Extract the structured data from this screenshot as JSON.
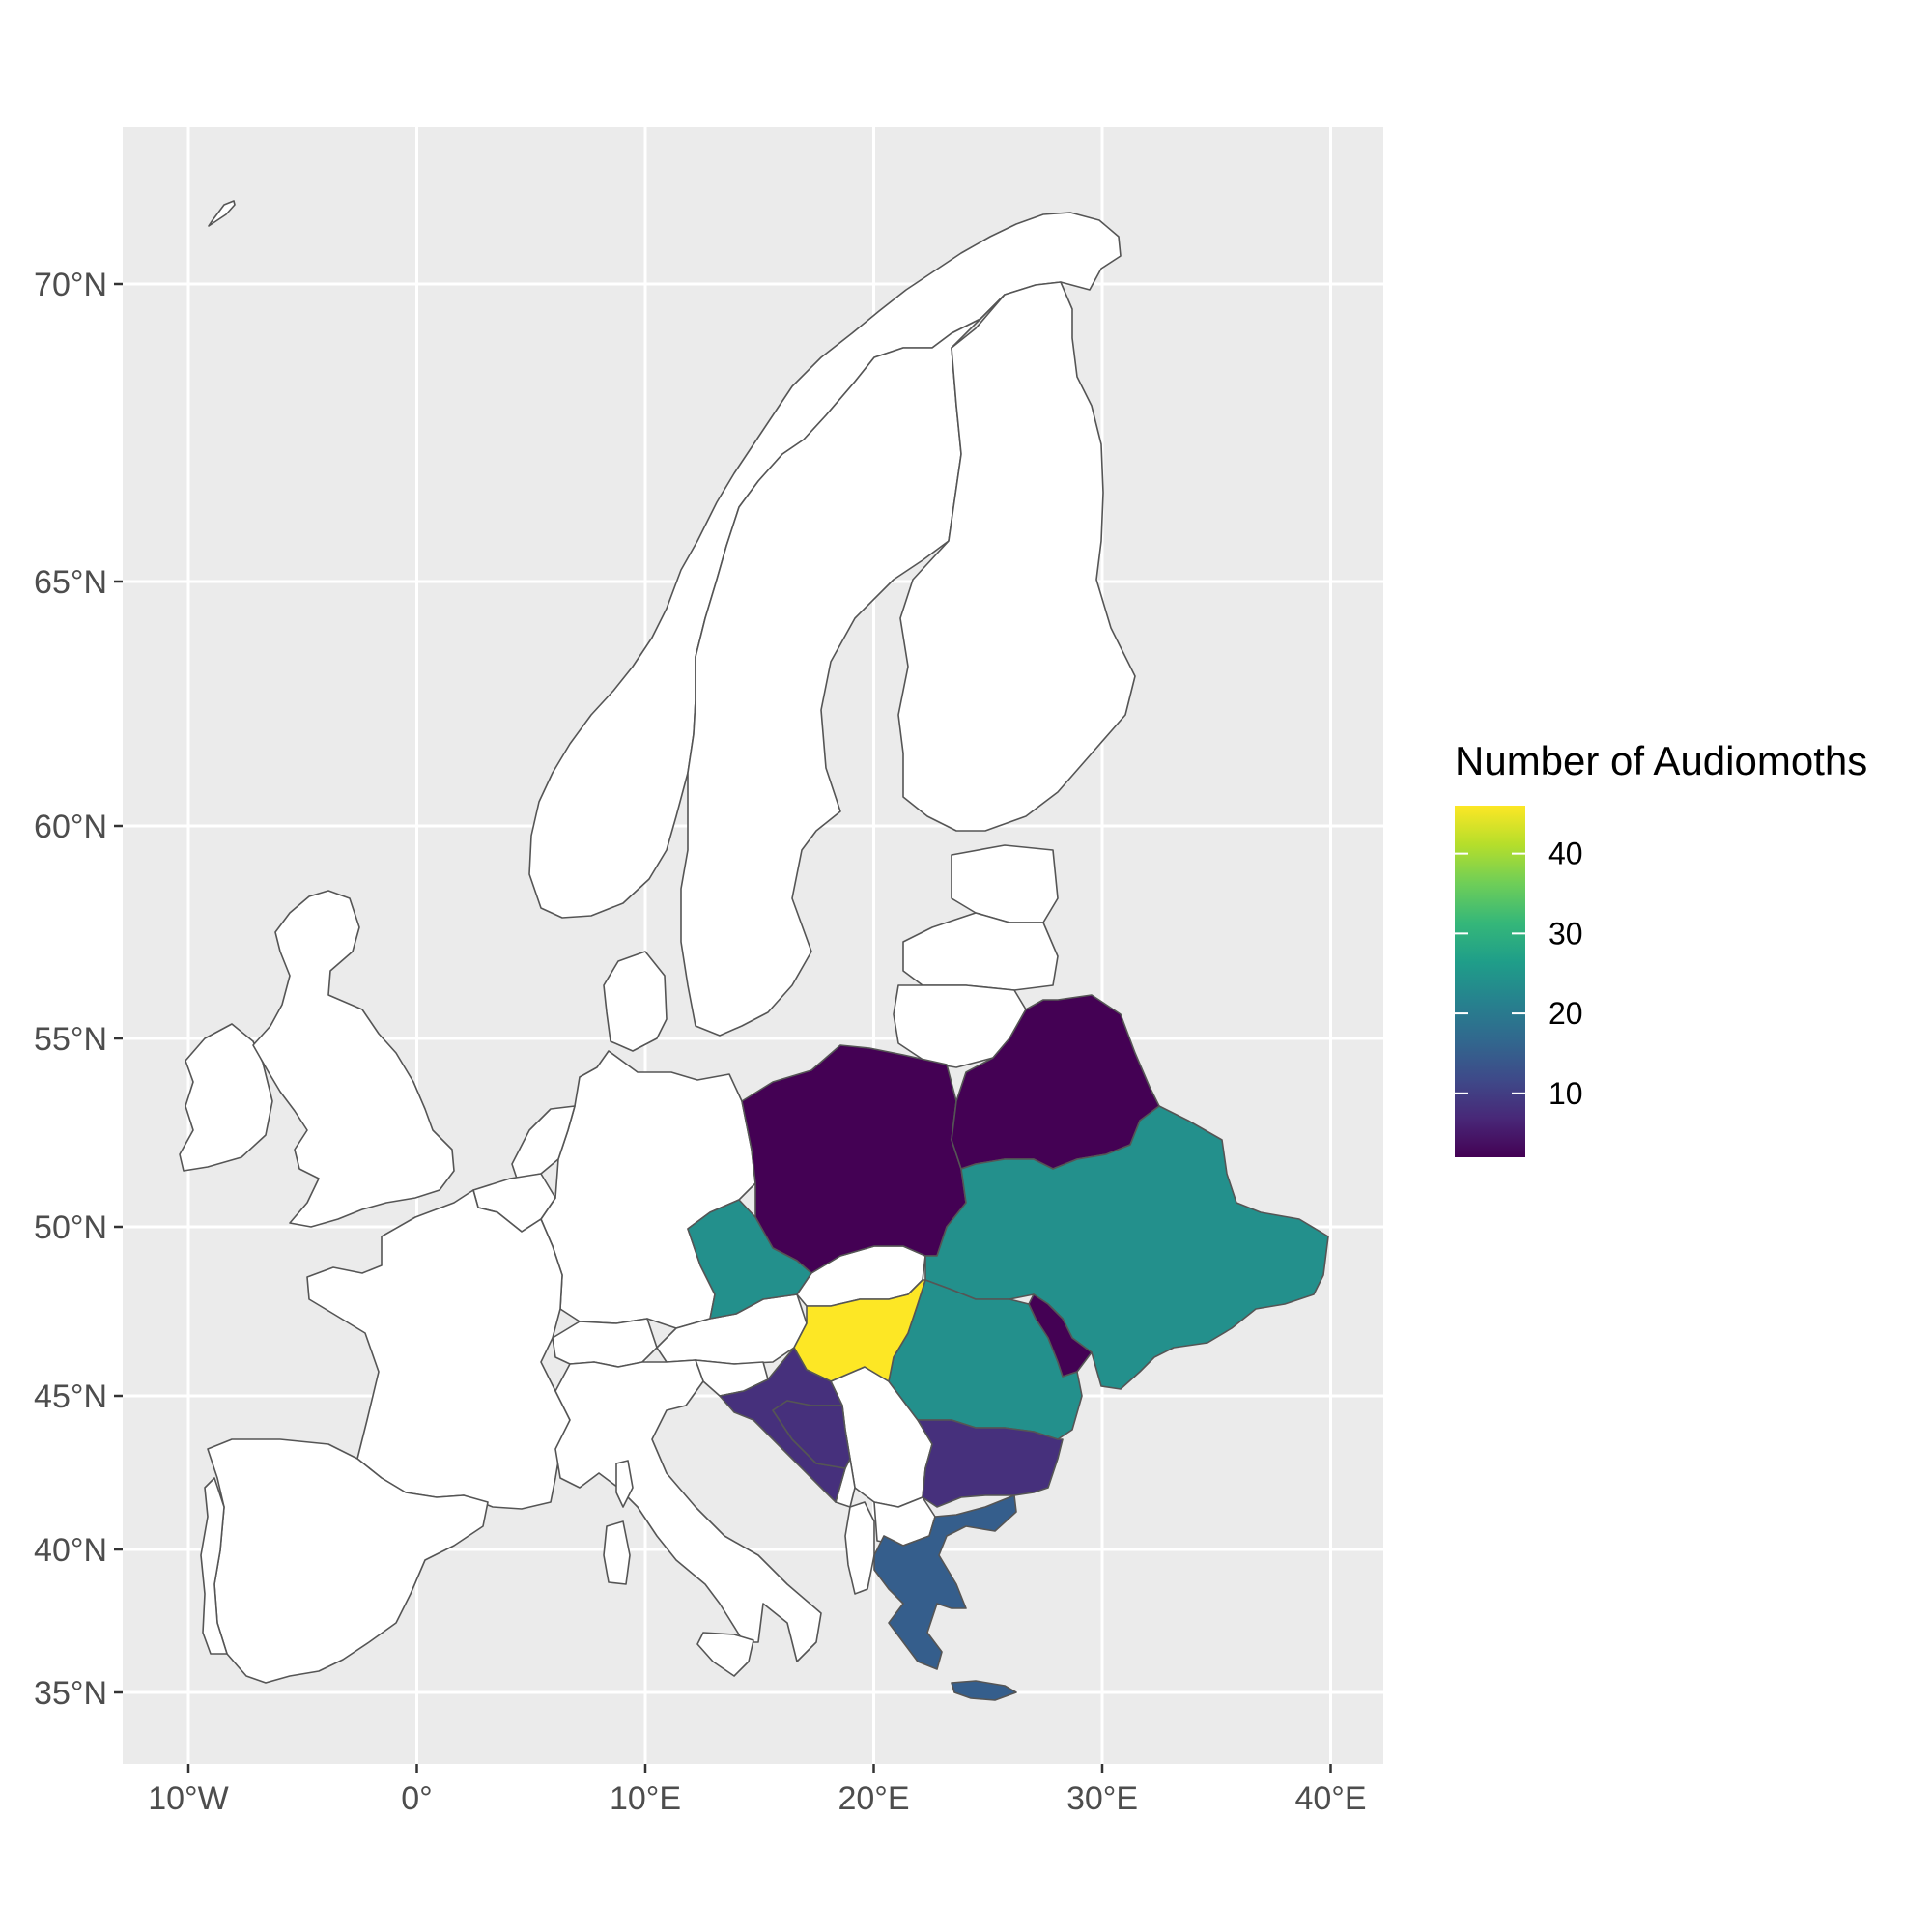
{
  "chart_data": {
    "type": "choropleth",
    "legend": {
      "title": "Number of Audiomoths",
      "ticks": [
        10,
        20,
        30,
        40
      ],
      "tick_labels": [
        "10",
        "20",
        "30",
        "40"
      ],
      "range": [
        2,
        46
      ],
      "palette": "viridis",
      "colors": [
        "#440154",
        "#482878",
        "#3e4a89",
        "#31688e",
        "#26828e",
        "#1f9e89",
        "#35b779",
        "#6ece58",
        "#b5de2b",
        "#fde725"
      ],
      "placement": "right"
    },
    "x_axis": {
      "ticks": [
        -10,
        0,
        10,
        20,
        30,
        40
      ],
      "tick_labels": [
        "10°W",
        "0°",
        "10°E",
        "20°E",
        "30°E",
        "40°E"
      ],
      "range": [
        -13,
        42.5
      ]
    },
    "y_axis": {
      "ticks": [
        35,
        40,
        45,
        50,
        55,
        60,
        65,
        70
      ],
      "tick_labels": [
        "35°N",
        "40°N",
        "45°N",
        "50°N",
        "55°N",
        "60°N",
        "65°N",
        "70°N"
      ],
      "range": [
        33,
        73
      ]
    },
    "grid": true,
    "background": "#ebebeb",
    "regions": [
      {
        "name": "Poland",
        "value": 2
      },
      {
        "name": "Belarus",
        "value": 2
      },
      {
        "name": "Moldova",
        "value": 2
      },
      {
        "name": "Czechia",
        "value": 24
      },
      {
        "name": "Ukraine",
        "value": 24
      },
      {
        "name": "Romania",
        "value": 24
      },
      {
        "name": "Hungary",
        "value": 46
      },
      {
        "name": "Croatia",
        "value": 8
      },
      {
        "name": "Bosnia and Herzegovina",
        "value": 8
      },
      {
        "name": "Bulgaria",
        "value": 8
      },
      {
        "name": "Greece",
        "value": 15
      }
    ]
  }
}
